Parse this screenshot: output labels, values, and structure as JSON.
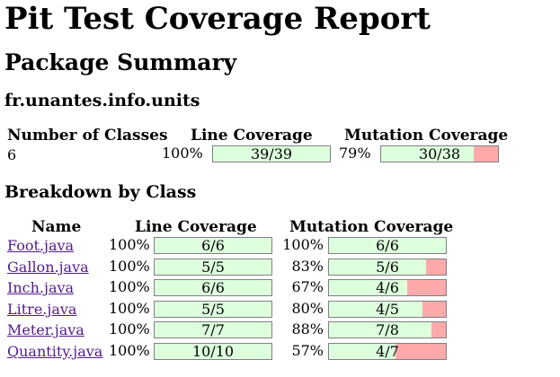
{
  "title": "Pit Test Coverage Report",
  "package_summary_heading": "Package Summary",
  "package_name": "fr.unantes.info.units",
  "summary": {
    "headers": {
      "classes": "Number of Classes",
      "line": "Line Coverage",
      "mutation": "Mutation Coverage"
    },
    "classes": "6",
    "line_pct": "100%",
    "line_ratio": "39/39",
    "line_fraction": 1.0,
    "mutation_pct": "79%",
    "mutation_ratio": "30/38",
    "mutation_fraction": 0.789
  },
  "breakdown_heading": "Breakdown by Class",
  "breakdown": {
    "headers": {
      "name": "Name",
      "line": "Line Coverage",
      "mutation": "Mutation Coverage"
    },
    "rows": [
      {
        "name": "Foot.java",
        "line_pct": "100%",
        "line_ratio": "6/6",
        "line_fraction": 1.0,
        "mutation_pct": "100%",
        "mutation_ratio": "6/6",
        "mutation_fraction": 1.0
      },
      {
        "name": "Gallon.java",
        "line_pct": "100%",
        "line_ratio": "5/5",
        "line_fraction": 1.0,
        "mutation_pct": "83%",
        "mutation_ratio": "5/6",
        "mutation_fraction": 0.833
      },
      {
        "name": "Inch.java",
        "line_pct": "100%",
        "line_ratio": "6/6",
        "line_fraction": 1.0,
        "mutation_pct": "67%",
        "mutation_ratio": "4/6",
        "mutation_fraction": 0.667
      },
      {
        "name": "Litre.java",
        "line_pct": "100%",
        "line_ratio": "5/5",
        "line_fraction": 1.0,
        "mutation_pct": "80%",
        "mutation_ratio": "4/5",
        "mutation_fraction": 0.8
      },
      {
        "name": "Meter.java",
        "line_pct": "100%",
        "line_ratio": "7/7",
        "line_fraction": 1.0,
        "mutation_pct": "88%",
        "mutation_ratio": "7/8",
        "mutation_fraction": 0.875
      },
      {
        "name": "Quantity.java",
        "line_pct": "100%",
        "line_ratio": "10/10",
        "line_fraction": 1.0,
        "mutation_pct": "57%",
        "mutation_ratio": "4/7",
        "mutation_fraction": 0.571
      }
    ]
  },
  "colors": {
    "covered": "#ddffdd",
    "uncovered": "#ffaaaa",
    "bar_border": "#808080",
    "link": "#551a8b"
  }
}
